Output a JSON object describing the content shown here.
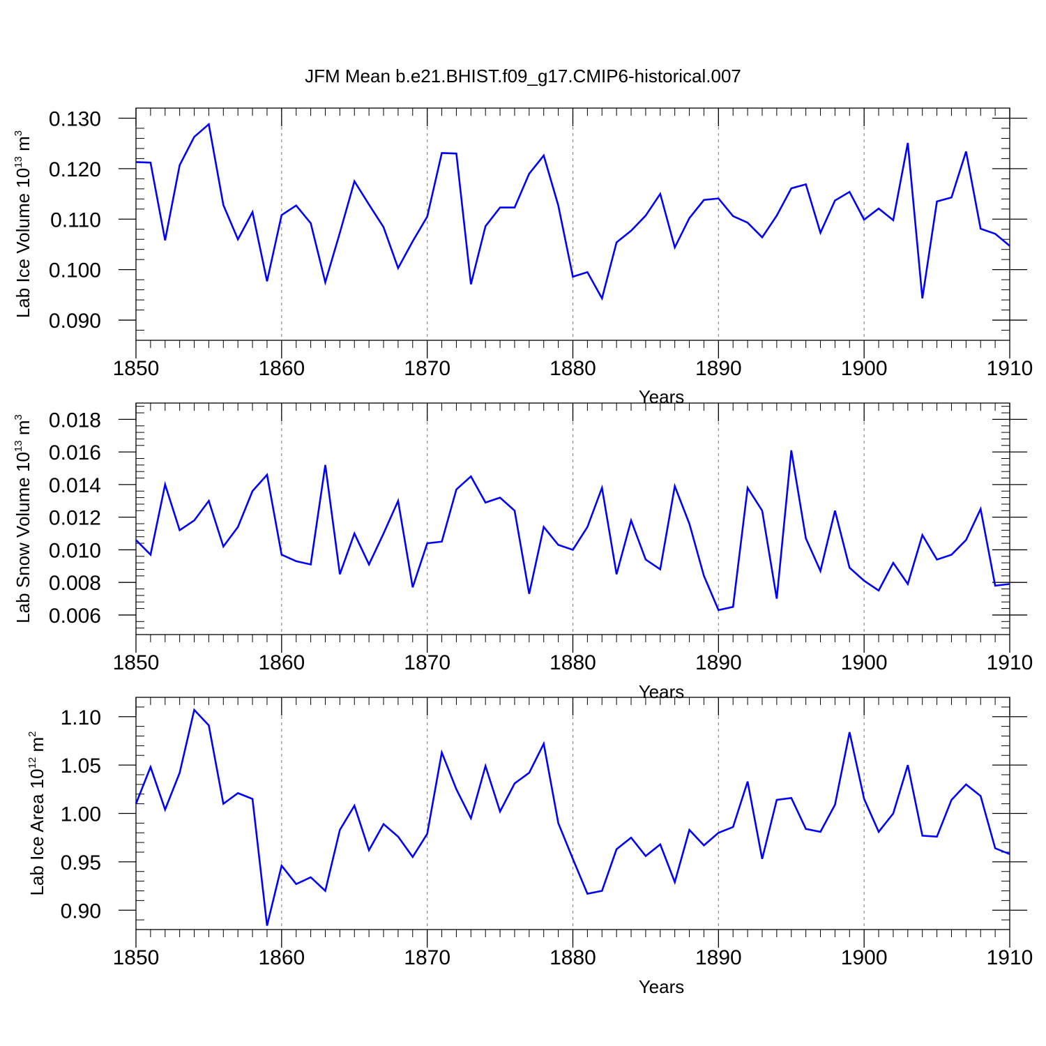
{
  "title": "JFM Mean b.e21.BHIST.f09_g17.CMIP6-historical.007",
  "colors": {
    "series": "#0000ff",
    "grid": "#8a8a8a",
    "axis": "#000000"
  },
  "chart_data": [
    {
      "type": "line",
      "title": "JFM Mean b.e21.BHIST.f09_g17.CMIP6-historical.007",
      "xlabel": "Years",
      "ylabel": {
        "prefix": "Lab Ice Volume 10",
        "exponent": "13",
        "unit": " m",
        "unit_exponent": "3"
      },
      "xlim": [
        1850,
        1910
      ],
      "ylim": [
        0.086,
        0.132
      ],
      "x_ticks": [
        1850,
        1860,
        1870,
        1880,
        1890,
        1900,
        1910
      ],
      "x_tick_labels": [
        "1850",
        "1860",
        "1870",
        "1880",
        "1890",
        "1900",
        "1910"
      ],
      "y_ticks": [
        0.09,
        0.1,
        0.11,
        0.12,
        0.13
      ],
      "y_tick_labels": [
        "0.090",
        "0.100",
        "0.110",
        "0.120",
        "0.130"
      ],
      "grid": "vertical dashed at major x ticks",
      "series": [
        {
          "name": "Lab Ice Volume",
          "x_start": 1850,
          "values": [
            0.1213,
            0.1212,
            0.1058,
            0.1207,
            0.1263,
            0.1288,
            0.1128,
            0.106,
            0.1114,
            0.0977,
            0.1108,
            0.1127,
            0.1092,
            0.0975,
            0.1073,
            0.1175,
            0.1129,
            0.1084,
            0.1003,
            0.1056,
            0.1105,
            0.1231,
            0.123,
            0.0971,
            0.1086,
            0.1123,
            0.1123,
            0.119,
            0.1226,
            0.1127,
            0.0986,
            0.0995,
            0.0943,
            0.1054,
            0.1077,
            0.1107,
            0.115,
            0.1044,
            0.1102,
            0.1138,
            0.1141,
            0.1106,
            0.1093,
            0.1064,
            0.1107,
            0.1161,
            0.1169,
            0.1073,
            0.1137,
            0.1154,
            0.1099,
            0.1121,
            0.1098,
            0.1251,
            0.0943,
            0.1135,
            0.1143,
            0.1234,
            0.1081,
            0.1071,
            0.1047
          ]
        }
      ]
    },
    {
      "type": "line",
      "xlabel": "Years",
      "ylabel": {
        "prefix": "Lab Snow Volume 10",
        "exponent": "13",
        "unit": " m",
        "unit_exponent": "3"
      },
      "xlim": [
        1850,
        1910
      ],
      "ylim": [
        0.0048,
        0.019
      ],
      "x_ticks": [
        1850,
        1860,
        1870,
        1880,
        1890,
        1900,
        1910
      ],
      "x_tick_labels": [
        "1850",
        "1860",
        "1870",
        "1880",
        "1890",
        "1900",
        "1910"
      ],
      "y_ticks": [
        0.006,
        0.008,
        0.01,
        0.012,
        0.014,
        0.016,
        0.018
      ],
      "y_tick_labels": [
        "0.006",
        "0.008",
        "0.010",
        "0.012",
        "0.014",
        "0.016",
        "0.018"
      ],
      "grid": "vertical dashed at major x ticks",
      "series": [
        {
          "name": "Lab Snow Volume",
          "x_start": 1850,
          "values": [
            0.0106,
            0.0097,
            0.014,
            0.0112,
            0.0118,
            0.013,
            0.0102,
            0.0114,
            0.0136,
            0.0146,
            0.0097,
            0.0093,
            0.0091,
            0.0152,
            0.0085,
            0.011,
            0.0091,
            0.011,
            0.013,
            0.0077,
            0.0104,
            0.0105,
            0.0137,
            0.0145,
            0.0129,
            0.0132,
            0.0124,
            0.0073,
            0.0114,
            0.0103,
            0.01,
            0.0114,
            0.0138,
            0.0085,
            0.0118,
            0.0094,
            0.0088,
            0.0139,
            0.0116,
            0.0084,
            0.0063,
            0.0065,
            0.0138,
            0.0124,
            0.007,
            0.0161,
            0.0107,
            0.0087,
            0.0124,
            0.0089,
            0.0081,
            0.0075,
            0.0092,
            0.0079,
            0.0109,
            0.0094,
            0.0097,
            0.0106,
            0.0125,
            0.0078,
            0.0079
          ]
        }
      ]
    },
    {
      "type": "line",
      "xlabel": "Years",
      "ylabel": {
        "prefix": "Lab Ice Area 10",
        "exponent": "12",
        "unit": " m",
        "unit_exponent": "2"
      },
      "xlim": [
        1850,
        1910
      ],
      "ylim": [
        0.88,
        1.12
      ],
      "x_ticks": [
        1850,
        1860,
        1870,
        1880,
        1890,
        1900,
        1910
      ],
      "x_tick_labels": [
        "1850",
        "1860",
        "1870",
        "1880",
        "1890",
        "1900",
        "1910"
      ],
      "y_ticks": [
        0.9,
        0.95,
        1.0,
        1.05,
        1.1
      ],
      "y_tick_labels": [
        "0.90",
        "0.95",
        "1.00",
        "1.05",
        "1.10"
      ],
      "grid": "vertical dashed at major x ticks",
      "series": [
        {
          "name": "Lab Ice Area",
          "x_start": 1850,
          "values": [
            1.01,
            1.048,
            1.004,
            1.042,
            1.107,
            1.091,
            1.01,
            1.021,
            1.015,
            0.884,
            0.946,
            0.927,
            0.934,
            0.92,
            0.983,
            1.008,
            0.962,
            0.989,
            0.976,
            0.955,
            0.979,
            1.063,
            1.025,
            0.995,
            1.049,
            1.002,
            1.031,
            1.042,
            1.072,
            0.99,
            0.953,
            0.917,
            0.92,
            0.963,
            0.975,
            0.956,
            0.968,
            0.929,
            0.983,
            0.967,
            0.98,
            0.986,
            1.033,
            0.953,
            1.014,
            1.016,
            0.984,
            0.981,
            1.009,
            1.084,
            1.015,
            0.981,
            1.0,
            1.05,
            0.977,
            0.976,
            1.014,
            1.03,
            1.018,
            0.964,
            0.958
          ]
        }
      ]
    }
  ]
}
